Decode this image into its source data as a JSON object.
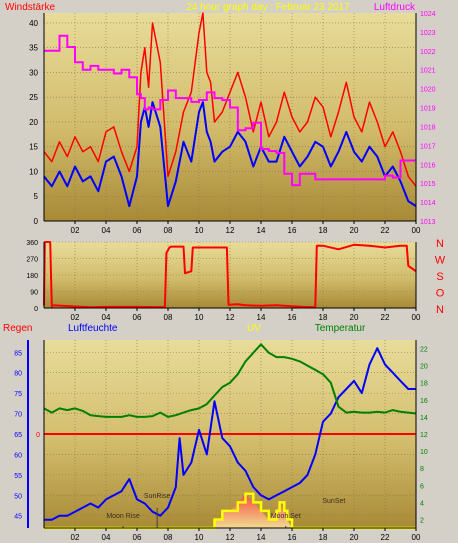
{
  "chart_data": [
    {
      "type": "line",
      "title": "24 hour graph day : Februar 23 2017",
      "left_label": "Windstärke",
      "right_label": "Luftdruck",
      "x_ticks": [
        "02",
        "04",
        "06",
        "08",
        "10",
        "12",
        "14",
        "16",
        "18",
        "20",
        "22",
        "00"
      ],
      "y_left_ticks": [
        0,
        5,
        10,
        15,
        20,
        25,
        30,
        35,
        40
      ],
      "y_left_range": [
        0,
        42
      ],
      "y_right_ticks": [
        1013,
        1014,
        1015,
        1016,
        1017,
        1018,
        1019,
        1020,
        1021,
        1022,
        1023,
        1024
      ],
      "y_right_range": [
        1013,
        1024
      ],
      "grid": true,
      "series": [
        {
          "key": "gust",
          "color": "#ff0000",
          "axis": "left",
          "x": [
            0,
            0.5,
            1,
            1.5,
            2,
            2.5,
            3,
            3.5,
            4,
            4.5,
            5,
            5.5,
            6,
            6.25,
            6.5,
            6.75,
            7,
            7.5,
            8,
            8.5,
            9,
            9.5,
            10,
            10.25,
            10.5,
            10.75,
            11,
            11.5,
            12,
            12.5,
            13,
            13.5,
            14,
            14.5,
            15,
            15.5,
            16,
            16.5,
            17,
            17.5,
            18,
            18.5,
            19,
            19.5,
            20,
            20.5,
            21,
            21.5,
            22,
            22.5,
            23,
            23.5,
            24
          ],
          "y": [
            14,
            12,
            16,
            13,
            17,
            14,
            15,
            12,
            18,
            19,
            14,
            10,
            15,
            30,
            35,
            27,
            40,
            32,
            9,
            14,
            22,
            26,
            38,
            42,
            30,
            28,
            20,
            22,
            26,
            30,
            25,
            18,
            24,
            17,
            20,
            26,
            21,
            18,
            20,
            25,
            23,
            17,
            22,
            28,
            21,
            18,
            24,
            20,
            15,
            18,
            14,
            9,
            7
          ]
        },
        {
          "key": "wind",
          "color": "#0000ff",
          "axis": "left",
          "x": [
            0,
            0.5,
            1,
            1.5,
            2,
            2.5,
            3,
            3.5,
            4,
            4.5,
            5,
            5.5,
            6,
            6.25,
            6.5,
            6.75,
            7,
            7.5,
            8,
            8.5,
            9,
            9.5,
            10,
            10.25,
            10.5,
            10.75,
            11,
            11.5,
            12,
            12.5,
            13,
            13.5,
            14,
            14.5,
            15,
            15.5,
            16,
            16.5,
            17,
            17.5,
            18,
            18.5,
            19,
            19.5,
            20,
            20.5,
            21,
            21.5,
            22,
            22.5,
            23,
            23.5,
            24
          ],
          "y": [
            9,
            7,
            10,
            7,
            11,
            8,
            9,
            6,
            12,
            13,
            9,
            3,
            9,
            20,
            23,
            19,
            24,
            19,
            3,
            8,
            16,
            12,
            22,
            24,
            18,
            16,
            12,
            14,
            15,
            18,
            16,
            11,
            15,
            12,
            12,
            17,
            14,
            11,
            13,
            16,
            15,
            11,
            14,
            18,
            14,
            12,
            15,
            13,
            9,
            11,
            8,
            4,
            3
          ]
        },
        {
          "key": "pressure",
          "color": "#ff00ff",
          "axis": "right",
          "x": [
            0,
            0.5,
            1,
            1.5,
            2,
            2.5,
            3,
            3.5,
            4,
            4.5,
            5,
            5.5,
            6,
            6.25,
            6.5,
            6.75,
            7,
            7.5,
            8,
            8.5,
            9,
            9.5,
            10,
            10.5,
            11,
            11.5,
            12,
            12.5,
            13,
            13.5,
            14,
            14.5,
            15,
            15.5,
            16,
            16.5,
            17,
            17.5,
            18,
            18.5,
            19,
            19.5,
            20,
            20.5,
            21,
            21.5,
            22,
            22.5,
            23,
            23.5,
            24
          ],
          "y": [
            1022,
            1022,
            1022.8,
            1022.2,
            1021.4,
            1021,
            1021.2,
            1021,
            1021,
            1020.8,
            1021,
            1020.6,
            1019.7,
            1019.5,
            1018.9,
            1019,
            1018.9,
            1019.4,
            1019.9,
            1019.5,
            1019.5,
            1019.3,
            1019.4,
            1019.8,
            1019.5,
            1019.4,
            1019,
            1017.8,
            1017.9,
            1018.2,
            1016.8,
            1016.7,
            1016.6,
            1015.5,
            1014.9,
            1015.5,
            1015.5,
            1015.2,
            1015.2,
            1015.2,
            1015.2,
            1015.2,
            1015.2,
            1015.2,
            1015.2,
            1015.2,
            1015.4,
            1015.3,
            1016.2,
            1016.2,
            1016.2
          ]
        }
      ]
    },
    {
      "type": "line",
      "title": "",
      "x_ticks": [
        "02",
        "04",
        "06",
        "08",
        "10",
        "12",
        "14",
        "16",
        "18",
        "20",
        "22",
        "00"
      ],
      "y_ticks": [
        0,
        90,
        180,
        270,
        360
      ],
      "y_range": [
        0,
        360
      ],
      "compass": [
        "N",
        "W",
        "S",
        "O",
        "N"
      ],
      "grid": true,
      "series": [
        {
          "key": "direction",
          "color": "#ff0000",
          "x": [
            0,
            0.05,
            0.4,
            0.5,
            0.55,
            2,
            2.5,
            3,
            4,
            5,
            6,
            7,
            7.8,
            7.9,
            8.1,
            8.2,
            9,
            9.1,
            9.5,
            9.6,
            10,
            11,
            11.8,
            11.9,
            12.5,
            13,
            14,
            15,
            16,
            17,
            17.5,
            17.6,
            18,
            19,
            20,
            21,
            22,
            23,
            23.4,
            23.5,
            24
          ],
          "y": [
            15,
            360,
            360,
            8,
            15,
            8,
            6,
            4,
            6,
            6,
            6,
            5,
            5,
            300,
            330,
            335,
            335,
            190,
            200,
            330,
            330,
            330,
            330,
            18,
            20,
            15,
            12,
            15,
            10,
            5,
            5,
            340,
            340,
            320,
            345,
            340,
            330,
            340,
            340,
            230,
            200
          ]
        }
      ]
    },
    {
      "type": "line",
      "title": "",
      "labels": {
        "regen": "Regen",
        "humidity": "Luftfeuchte",
        "uv": "UV",
        "temperature": "Temperatur"
      },
      "x_ticks": [
        "02",
        "04",
        "06",
        "08",
        "10",
        "12",
        "14",
        "16",
        "18",
        "20",
        "22",
        "00"
      ],
      "y_left_ticks": [
        45,
        50,
        55,
        60,
        65,
        70,
        75,
        80,
        85
      ],
      "y_left_range": [
        42,
        88
      ],
      "y_right_ticks": [
        2,
        4,
        6,
        8,
        10,
        12,
        14,
        16,
        18,
        20,
        22
      ],
      "y_right_range": [
        1,
        23
      ],
      "rain_line_label": "0",
      "rain_value": 0,
      "annotations": [
        {
          "text": "SunRise",
          "x": 7.3
        },
        {
          "text": "Moon Rise",
          "x": 5.1
        },
        {
          "text": "Moon Set",
          "x": 15.6
        },
        {
          "text": "SunSet",
          "x": 18.7
        }
      ],
      "grid": true,
      "series": [
        {
          "key": "humidity",
          "color": "#0000ff",
          "axis": "left",
          "x": [
            0,
            0.5,
            1,
            1.5,
            2,
            2.5,
            3,
            3.5,
            4,
            4.5,
            5,
            5.5,
            6,
            6.5,
            7,
            7.5,
            8,
            8.5,
            8.75,
            9,
            9.5,
            10,
            10.5,
            11,
            11.5,
            12,
            12.5,
            13,
            13.5,
            14,
            14.5,
            15,
            15.5,
            16,
            16.5,
            17,
            17.5,
            18,
            18.5,
            19,
            19.5,
            20,
            20.5,
            21,
            21.5,
            22,
            22.5,
            23,
            23.5,
            24
          ],
          "y": [
            44,
            44,
            45,
            45,
            46,
            47,
            48,
            47,
            49,
            50,
            51,
            54,
            49,
            48,
            46,
            45,
            47,
            52,
            64,
            55,
            58,
            66,
            60,
            73,
            64,
            62,
            58,
            56,
            52,
            50,
            49,
            50,
            51,
            52,
            53,
            55,
            60,
            68,
            70,
            74,
            76,
            78,
            75,
            82,
            86,
            82,
            80,
            78,
            76,
            76
          ]
        },
        {
          "key": "temperature",
          "color": "#008000",
          "axis": "right",
          "x": [
            0,
            0.5,
            1,
            1.5,
            2,
            2.5,
            3,
            3.5,
            4,
            4.5,
            5,
            5.5,
            6,
            6.5,
            7,
            7.5,
            8,
            8.5,
            9,
            9.5,
            10,
            10.5,
            11,
            11.5,
            12,
            12.5,
            13,
            13.5,
            14,
            14.5,
            15,
            15.5,
            16,
            16.5,
            17,
            17.5,
            18,
            18.5,
            19,
            19.5,
            20,
            20.5,
            21,
            21.5,
            22,
            22.5,
            23,
            23.5,
            24
          ],
          "y": [
            15,
            14.5,
            15,
            14.8,
            15,
            14.7,
            14.2,
            14.1,
            14,
            14,
            14,
            14.2,
            14,
            14,
            14.1,
            14.5,
            14,
            14.2,
            14.5,
            14.8,
            15,
            15.5,
            16.5,
            17.5,
            18,
            19,
            20.5,
            21.5,
            22.5,
            21.5,
            21,
            21,
            20.8,
            20.5,
            20,
            19.5,
            19,
            18,
            15.2,
            14.5,
            14.6,
            14.5,
            14.5,
            14.6,
            14.5,
            14.8,
            14.6,
            14.5,
            14.4
          ]
        },
        {
          "key": "uv",
          "color": "#ffff00",
          "axis": "right",
          "x": [
            0,
            10.9,
            11,
            11.4,
            11.5,
            11.8,
            12,
            12.5,
            13,
            13.5,
            14,
            14.5,
            15,
            15.2,
            15.5,
            15.7,
            16,
            24
          ],
          "y": [
            1,
            1,
            2,
            2,
            3,
            3,
            3,
            4,
            5,
            4,
            3,
            2,
            3,
            4,
            3,
            2,
            1,
            1
          ]
        }
      ]
    }
  ]
}
